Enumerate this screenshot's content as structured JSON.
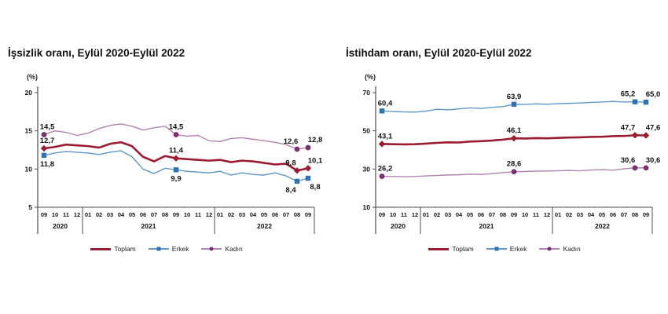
{
  "page_background": "#ffffff",
  "axis_color": "#4d4d4d",
  "text_color": "#111111",
  "chart_data": [
    {
      "id": "issizlik",
      "type": "line",
      "title": "İşsizlik oranı, Eylül 2020-Eylül 2022",
      "ylabel": "(%)",
      "ylim": [
        5,
        20
      ],
      "yticks": [
        20,
        15,
        10,
        5
      ],
      "grid": false,
      "legend_position": "bottom",
      "x_months": [
        "09",
        "10",
        "11",
        "12",
        "01",
        "02",
        "03",
        "04",
        "05",
        "06",
        "07",
        "08",
        "09",
        "10",
        "11",
        "12",
        "01",
        "02",
        "03",
        "04",
        "05",
        "06",
        "07",
        "08",
        "09"
      ],
      "year_groups": [
        {
          "label": "2020",
          "months": 4
        },
        {
          "label": "2021",
          "months": 12
        },
        {
          "label": "2022",
          "months": 9
        }
      ],
      "labeled_indices": [
        0,
        12,
        23,
        24
      ],
      "label_dx": [
        4,
        0,
        -8,
        9
      ],
      "series": [
        {
          "name": "Toplam",
          "color": "#9b1b30",
          "marker": "diamond",
          "marker_color": "#9b1b30",
          "width": 2.6,
          "label_side": "above",
          "values": [
            12.7,
            12.9,
            13.2,
            13.1,
            13.0,
            12.8,
            13.3,
            13.5,
            13.0,
            11.6,
            11.0,
            11.7,
            11.4,
            11.3,
            11.2,
            11.1,
            11.2,
            10.9,
            11.1,
            11.0,
            10.8,
            10.6,
            10.7,
            9.8,
            10.1
          ],
          "labeled_values": [
            "12,7",
            "11,4",
            "9,8",
            "10,1"
          ]
        },
        {
          "name": "Erkek",
          "color": "#5f97c4",
          "marker": "square",
          "marker_color": "#2e74b5",
          "width": 1.4,
          "label_side": "below",
          "values": [
            11.8,
            12.1,
            12.3,
            12.2,
            12.1,
            11.9,
            12.2,
            12.4,
            11.6,
            10.0,
            9.4,
            10.1,
            9.9,
            9.7,
            9.6,
            9.5,
            9.7,
            9.2,
            9.5,
            9.3,
            9.2,
            9.5,
            9.1,
            8.4,
            8.8
          ],
          "labeled_values": [
            "11,8",
            "9,9",
            "8,4",
            "8,8"
          ]
        },
        {
          "name": "Kadın",
          "color": "#b183b1",
          "marker": "circle",
          "marker_color": "#7c2e72",
          "width": 1.4,
          "label_side": "above",
          "values": [
            14.5,
            15.0,
            14.8,
            14.4,
            14.7,
            15.3,
            15.7,
            15.9,
            15.6,
            15.1,
            15.4,
            15.6,
            14.5,
            14.3,
            14.4,
            13.7,
            13.6,
            14.0,
            14.1,
            13.9,
            13.7,
            13.5,
            13.2,
            12.6,
            12.8
          ],
          "labeled_values": [
            "14,5",
            "14,5",
            "12,6",
            "12,8"
          ]
        }
      ]
    },
    {
      "id": "istihdam",
      "type": "line",
      "title": "İstihdam oranı, Eylül 2020-Eylül 2022",
      "ylabel": "(%)",
      "ylim": [
        10,
        70
      ],
      "yticks": [
        70,
        50,
        30,
        10
      ],
      "grid": false,
      "legend_position": "bottom",
      "x_months": [
        "09",
        "10",
        "11",
        "12",
        "01",
        "02",
        "03",
        "04",
        "05",
        "06",
        "07",
        "08",
        "09",
        "10",
        "11",
        "12",
        "01",
        "02",
        "03",
        "04",
        "05",
        "06",
        "07",
        "08",
        "09"
      ],
      "year_groups": [
        {
          "label": "2020",
          "months": 4
        },
        {
          "label": "2021",
          "months": 12
        },
        {
          "label": "2022",
          "months": 9
        }
      ],
      "labeled_indices": [
        0,
        12,
        23,
        24
      ],
      "label_dx": [
        4,
        0,
        -9,
        9
      ],
      "series": [
        {
          "name": "Toplam",
          "color": "#9b1b30",
          "marker": "diamond",
          "marker_color": "#9b1b30",
          "width": 2.6,
          "label_side": "above",
          "values": [
            43.1,
            43.0,
            42.9,
            43.0,
            43.3,
            43.7,
            44.0,
            43.9,
            44.4,
            44.6,
            44.9,
            45.4,
            46.1,
            46.0,
            46.2,
            46.1,
            46.3,
            46.5,
            46.6,
            46.8,
            46.9,
            47.2,
            47.3,
            47.7,
            47.6
          ],
          "labeled_values": [
            "43,1",
            "46,1",
            "47,7",
            "47,6"
          ]
        },
        {
          "name": "Erkek",
          "color": "#5f97c4",
          "marker": "square",
          "marker_color": "#2e74b5",
          "width": 1.4,
          "label_side": "above",
          "values": [
            60.4,
            60.1,
            59.9,
            59.8,
            60.3,
            61.3,
            61.0,
            61.5,
            62.0,
            61.7,
            62.3,
            62.7,
            63.9,
            63.8,
            64.1,
            63.9,
            64.2,
            64.4,
            64.6,
            64.9,
            65.1,
            65.4,
            65.1,
            65.2,
            65.0
          ],
          "labeled_values": [
            "60,4",
            "63,9",
            "65,2",
            "65,0"
          ]
        },
        {
          "name": "Kadın",
          "color": "#b183b1",
          "marker": "circle",
          "marker_color": "#7c2e72",
          "width": 1.4,
          "label_side": "above",
          "values": [
            26.2,
            26.1,
            26.0,
            26.1,
            26.4,
            26.6,
            26.9,
            27.0,
            27.3,
            27.2,
            27.6,
            28.1,
            28.6,
            28.7,
            28.9,
            29.0,
            29.1,
            29.3,
            29.1,
            29.5,
            29.7,
            29.4,
            30.1,
            30.6,
            30.6
          ],
          "labeled_values": [
            "26,2",
            "28,6",
            "30,6",
            "30,6"
          ]
        }
      ]
    }
  ]
}
